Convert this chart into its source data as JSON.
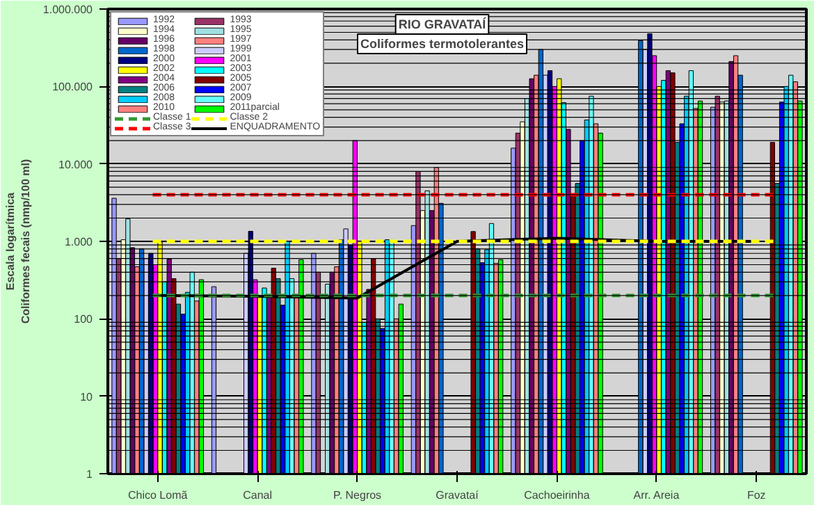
{
  "chart_data": {
    "type": "bar",
    "title": "RIO GRAVATAÍ",
    "subtitle": "Coliformes termotolerantes",
    "ylabel": "Coliformes fecais (nmp/100 ml)",
    "annotations": [
      "Escala logarítmica"
    ],
    "categories": [
      "Chico Lomã",
      "Canal",
      "P. Negros",
      "Gravataí",
      "Cachoeirinha",
      "Arr. Areia",
      "Foz"
    ],
    "log": true,
    "ylim": [
      1,
      1000000
    ],
    "yticks": [
      1,
      10,
      100,
      {
        "value": 1000,
        "label": "1.000"
      },
      {
        "value": 10000,
        "label": "10.000"
      },
      {
        "value": 100000,
        "label": "100.000"
      },
      {
        "value": 1000000,
        "label": "1.000.000"
      }
    ],
    "grid": "y",
    "legend": "top left",
    "series": [
      {
        "name": "1992",
        "color": "#9999ff",
        "values": [
          3600,
          260,
          700,
          1600,
          16000,
          null,
          54000
        ]
      },
      {
        "name": "1993",
        "color": "#993366",
        "values": [
          600,
          null,
          400,
          8000,
          25000,
          null,
          75000
        ]
      },
      {
        "name": "1994",
        "color": "#ffffcc",
        "values": [
          1050,
          null,
          null,
          2500,
          35000,
          null,
          63000
        ]
      },
      {
        "name": "1995",
        "color": "#a0e0e0",
        "values": [
          1950,
          null,
          280,
          4500,
          70000,
          null,
          65000
        ]
      },
      {
        "name": "1996",
        "color": "#660066",
        "values": [
          830,
          null,
          400,
          2500,
          126000,
          null,
          210000
        ]
      },
      {
        "name": "1997",
        "color": "#ff8080",
        "values": [
          470,
          null,
          470,
          9000,
          140000,
          null,
          250000
        ]
      },
      {
        "name": "1998",
        "color": "#0066cc",
        "values": [
          800,
          null,
          1050,
          3100,
          300000,
          390000,
          140000
        ]
      },
      {
        "name": "1999",
        "color": "#ccccff",
        "values": [
          600,
          700,
          1450,
          null,
          140000,
          300000,
          null
        ]
      },
      {
        "name": "2000",
        "color": "#000080",
        "values": [
          700,
          1350,
          900,
          null,
          160000,
          480000,
          null
        ]
      },
      {
        "name": "2001",
        "color": "#ff00ff",
        "values": [
          500,
          320,
          20000,
          null,
          100000,
          250000,
          null
        ]
      },
      {
        "name": "2002",
        "color": "#ffff00",
        "values": [
          980,
          190,
          1000,
          null,
          126000,
          100000,
          null
        ]
      },
      {
        "name": "2003",
        "color": "#00ffff",
        "values": [
          300,
          250,
          90,
          null,
          62000,
          120000,
          null
        ]
      },
      {
        "name": "2004",
        "color": "#800080",
        "values": [
          590,
          200,
          240,
          null,
          28000,
          160000,
          null
        ]
      },
      {
        "name": "2005",
        "color": "#800000",
        "values": [
          330,
          450,
          600,
          1340,
          4000,
          150000,
          19000
        ]
      },
      {
        "name": "2006",
        "color": "#008080",
        "values": [
          155,
          330,
          100,
          800,
          5600,
          19000,
          5600
        ]
      },
      {
        "name": "2007",
        "color": "#0000ff",
        "values": [
          115,
          150,
          75,
          530,
          20000,
          33000,
          63000
        ]
      },
      {
        "name": "2008",
        "color": "#00ccff",
        "values": [
          220,
          1000,
          1050,
          780,
          37000,
          75000,
          100000
        ]
      },
      {
        "name": "2009",
        "color": "#66ffff",
        "values": [
          400,
          330,
          1000,
          1700,
          75000,
          160000,
          140000
        ]
      },
      {
        "name": "2010",
        "color": "#ff8080",
        "values": [
          170,
          200,
          100,
          520,
          33000,
          52000,
          115000
        ]
      },
      {
        "name": "2011parcial",
        "color": "#00ff00",
        "values": [
          320,
          580,
          155,
          580,
          25000,
          65000,
          65000
        ]
      },
      {
        "name": "ENQUADRAMENTO",
        "type": "line",
        "color": "#000000",
        "values": [
          200,
          195,
          185,
          1000,
          1100,
          1000,
          1000
        ]
      }
    ],
    "ref_lines": [
      {
        "axis": "y",
        "value": 200,
        "label": "Classe 1",
        "color": "#339933",
        "line_style": "dashed"
      },
      {
        "axis": "y",
        "value": 1000,
        "label": "Classe 2",
        "color": "#ffff00",
        "line_style": "dashed"
      },
      {
        "axis": "y",
        "value": 4000,
        "label": "Classe 3",
        "color": "#ff0000",
        "line_style": "dashed"
      }
    ]
  }
}
